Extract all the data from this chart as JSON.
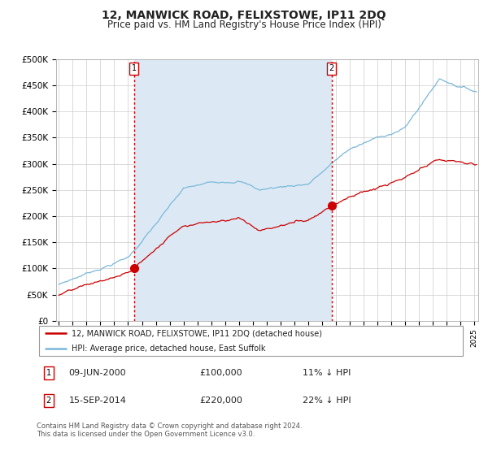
{
  "title": "12, MANWICK ROAD, FELIXSTOWE, IP11 2DQ",
  "subtitle": "Price paid vs. HM Land Registry's House Price Index (HPI)",
  "title_fontsize": 10,
  "subtitle_fontsize": 8.5,
  "background_color": "#ffffff",
  "plot_bg_color": "#ffffff",
  "shade_color": "#dce9f5",
  "grid_color": "#cccccc",
  "ylim": [
    0,
    500000
  ],
  "yticks": [
    0,
    50000,
    100000,
    150000,
    200000,
    250000,
    300000,
    350000,
    400000,
    450000,
    500000
  ],
  "ytick_labels": [
    "£0",
    "£50K",
    "£100K",
    "£150K",
    "£200K",
    "£250K",
    "£300K",
    "£350K",
    "£400K",
    "£450K",
    "£500K"
  ],
  "hpi_color": "#7ab8d9",
  "price_color": "#cc0000",
  "marker_color": "#cc0000",
  "vline_color": "#cc0000",
  "transaction1_date": 2000.44,
  "transaction1_price": 100000,
  "transaction1_label": "1",
  "transaction2_date": 2014.71,
  "transaction2_price": 220000,
  "transaction2_label": "2",
  "legend_entry1": "12, MANWICK ROAD, FELIXSTOWE, IP11 2DQ (detached house)",
  "legend_entry2": "HPI: Average price, detached house, East Suffolk",
  "annot1_date": "09-JUN-2000",
  "annot1_price": "£100,000",
  "annot1_pct": "11% ↓ HPI",
  "annot2_date": "15-SEP-2014",
  "annot2_price": "£220,000",
  "annot2_pct": "22% ↓ HPI",
  "footer": "Contains HM Land Registry data © Crown copyright and database right 2024.\nThis data is licensed under the Open Government Licence v3.0.",
  "xstart": 1995,
  "xend": 2025
}
